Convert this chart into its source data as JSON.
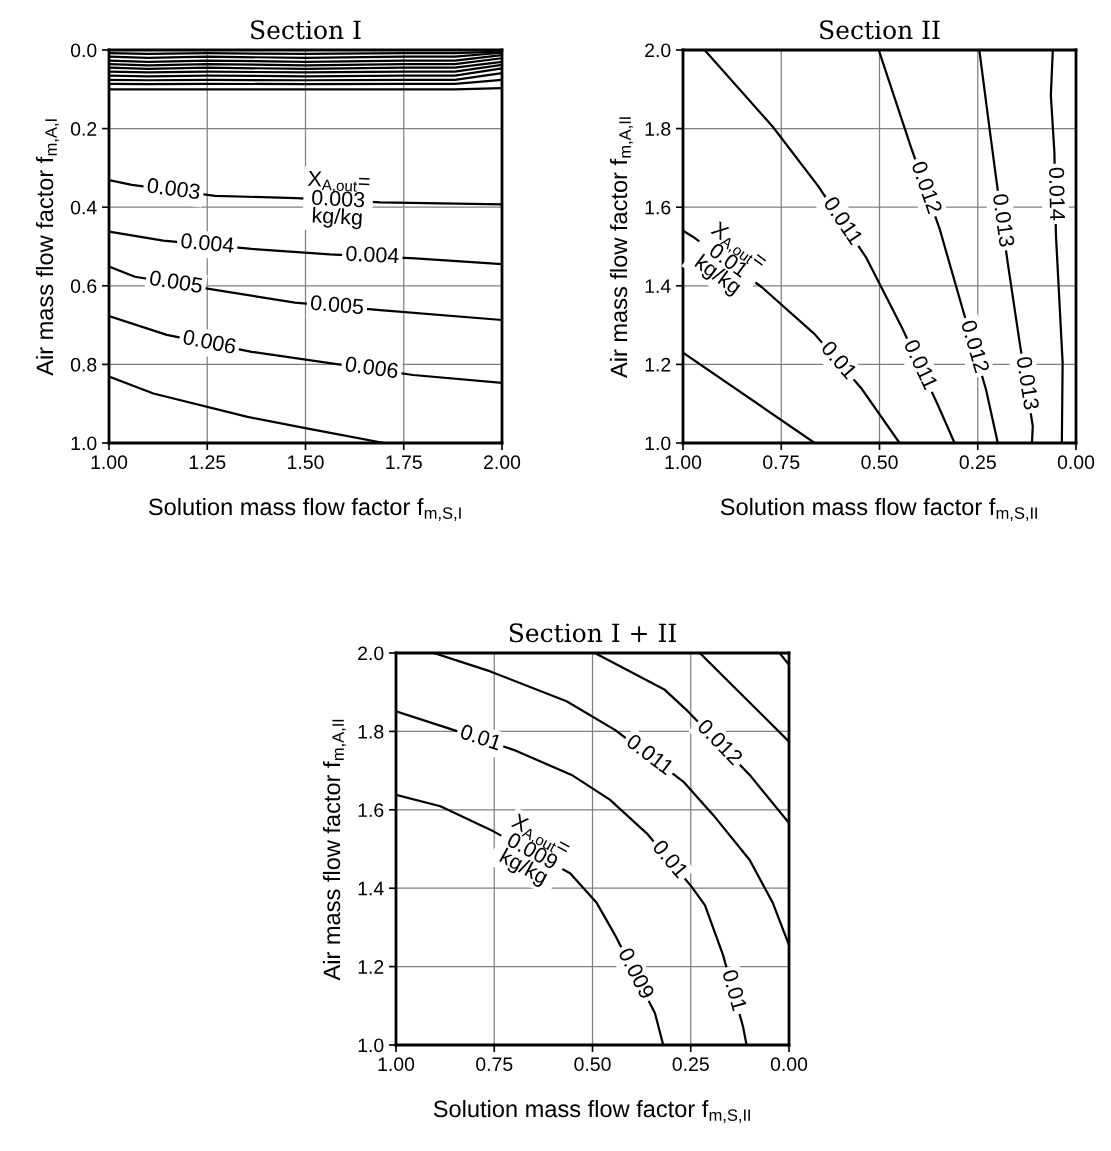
{
  "chart_data": [
    {
      "type": "line",
      "title": "Section I",
      "xlabel": "Solution mass flow factor f$_{m,S,I}$",
      "ylabel": "Air mass flow factor f$_{m,A,I}$",
      "xlim": [
        1.0,
        2.0
      ],
      "ylim": [
        1.0,
        0.0
      ],
      "xticks": [
        {
          "value": 1.0,
          "label": "1.00"
        },
        {
          "value": 1.25,
          "label": "1.25"
        },
        {
          "value": 1.5,
          "label": "1.50"
        },
        {
          "value": 1.75,
          "label": "1.75"
        },
        {
          "value": 2.0,
          "label": "2.00"
        }
      ],
      "yticks": [
        {
          "value": 0.0,
          "label": "0.0"
        },
        {
          "value": 0.2,
          "label": "0.2"
        },
        {
          "value": 0.4,
          "label": "0.4"
        },
        {
          "value": 0.6,
          "label": "0.6"
        },
        {
          "value": 0.8,
          "label": "0.8"
        },
        {
          "value": 1.0,
          "label": "1.0"
        }
      ],
      "grid": true,
      "series": [
        {
          "color": "#000000",
          "x": [
            1.0,
            1.1,
            1.25,
            1.5,
            1.75,
            1.88,
            2.0
          ],
          "values": [
            0.008,
            0.01,
            0.008,
            0.01,
            0.008,
            0.008,
            0.004
          ]
        },
        {
          "color": "#000000",
          "x": [
            1.0,
            1.1,
            1.25,
            1.5,
            1.75,
            1.88,
            2.0
          ],
          "values": [
            0.017,
            0.02,
            0.017,
            0.02,
            0.017,
            0.017,
            0.007
          ]
        },
        {
          "color": "#000000",
          "x": [
            1.0,
            1.1,
            1.25,
            1.5,
            1.75,
            1.88,
            2.0
          ],
          "values": [
            0.027,
            0.03,
            0.027,
            0.03,
            0.027,
            0.027,
            0.013
          ]
        },
        {
          "color": "#000000",
          "x": [
            1.0,
            1.1,
            1.25,
            1.5,
            1.75,
            1.88,
            2.0
          ],
          "values": [
            0.036,
            0.039,
            0.036,
            0.039,
            0.036,
            0.036,
            0.021
          ]
        },
        {
          "color": "#000000",
          "x": [
            1.0,
            1.1,
            1.25,
            1.5,
            1.75,
            1.88,
            2.0
          ],
          "values": [
            0.045,
            0.048,
            0.045,
            0.048,
            0.045,
            0.045,
            0.03
          ]
        },
        {
          "color": "#000000",
          "x": [
            1.0,
            1.1,
            1.25,
            1.5,
            1.75,
            1.88,
            2.0
          ],
          "values": [
            0.055,
            0.057,
            0.055,
            0.057,
            0.055,
            0.055,
            0.038
          ]
        },
        {
          "color": "#000000",
          "x": [
            1.0,
            1.1,
            1.25,
            1.5,
            1.75,
            1.88,
            2.0
          ],
          "values": [
            0.065,
            0.067,
            0.065,
            0.067,
            0.065,
            0.065,
            0.047
          ]
        },
        {
          "color": "#000000",
          "x": [
            1.0,
            1.1,
            1.25,
            1.5,
            1.75,
            1.88,
            2.0
          ],
          "values": [
            0.076,
            0.077,
            0.076,
            0.077,
            0.076,
            0.076,
            0.059
          ]
        },
        {
          "color": "#000000",
          "x": [
            1.0,
            1.1,
            1.25,
            1.5,
            1.75,
            1.88,
            2.0
          ],
          "values": [
            0.086,
            0.087,
            0.086,
            0.087,
            0.086,
            0.086,
            0.076
          ]
        },
        {
          "color": "#000000",
          "x": [
            1.0,
            1.25,
            1.5,
            1.75,
            1.88,
            2.0
          ],
          "values": [
            0.1,
            0.1,
            0.1,
            0.1,
            0.1,
            0.097
          ]
        },
        {
          "color": "#000000",
          "x": [
            1.0,
            1.058,
            1.27,
            1.476,
            1.69,
            2.0
          ],
          "values": [
            0.331,
            0.343,
            0.371,
            0.377,
            0.388,
            0.393
          ]
        },
        {
          "color": "#000000",
          "x": [
            1.0,
            1.138,
            1.363,
            1.562,
            1.779,
            2.0
          ],
          "values": [
            0.462,
            0.485,
            0.506,
            0.52,
            0.53,
            0.545
          ]
        },
        {
          "color": "#000000",
          "x": [
            1.0,
            1.066,
            1.274,
            1.473,
            1.69,
            2.0
          ],
          "values": [
            0.551,
            0.577,
            0.611,
            0.643,
            0.662,
            0.687
          ]
        },
        {
          "color": "#000000",
          "x": [
            1.0,
            1.147,
            1.363,
            1.562,
            1.774,
            2.0
          ],
          "values": [
            0.677,
            0.725,
            0.768,
            0.797,
            0.827,
            0.847
          ]
        },
        {
          "color": "#000000",
          "x": [
            1.0,
            1.113,
            1.35,
            1.503,
            1.7
          ],
          "values": [
            0.831,
            0.874,
            0.933,
            0.963,
            1.0
          ]
        }
      ],
      "annotations": [
        {
          "text": "0.003",
          "x": 1.164,
          "y": 0.357
        },
        {
          "text": "X$_{A,out}$=\n0.003\nkg/kg",
          "x": 1.583,
          "y": 0.3825
        },
        {
          "text": "0.004",
          "x": 1.25,
          "y": 0.4955
        },
        {
          "text": "0.004",
          "x": 1.67,
          "y": 0.525
        },
        {
          "text": "0.005",
          "x": 1.17,
          "y": 0.594
        },
        {
          "text": "0.005",
          "x": 1.58,
          "y": 0.6525
        },
        {
          "text": "0.006",
          "x": 1.255,
          "y": 0.7465
        },
        {
          "text": "0.006",
          "x": 1.668,
          "y": 0.812
        }
      ]
    },
    {
      "type": "line",
      "title": "Section II",
      "xlabel": "Solution mass flow factor f$_{m,S,II}$",
      "ylabel": "Air mass flow factor f$_{m,A,II}$",
      "xlim": [
        1.0,
        0.0
      ],
      "ylim": [
        1.0,
        2.0
      ],
      "xticks": [
        {
          "value": 1.0,
          "label": "1.00"
        },
        {
          "value": 0.75,
          "label": "0.75"
        },
        {
          "value": 0.5,
          "label": "0.50"
        },
        {
          "value": 0.25,
          "label": "0.25"
        },
        {
          "value": 0.0,
          "label": "0.00"
        }
      ],
      "yticks": [
        {
          "value": 1.0,
          "label": "1.0"
        },
        {
          "value": 1.2,
          "label": "1.2"
        },
        {
          "value": 1.4,
          "label": "1.4"
        },
        {
          "value": 1.6,
          "label": "1.6"
        },
        {
          "value": 1.8,
          "label": "1.8"
        },
        {
          "value": 2.0,
          "label": "2.0"
        }
      ],
      "grid": true,
      "series": [
        {
          "color": "#000000",
          "x": [
            1.0,
            0.665
          ],
          "values": [
            1.23,
            1.0
          ]
        },
        {
          "color": "#000000",
          "x": [
            1.0,
            0.975,
            0.8,
            0.665,
            0.547,
            0.449
          ],
          "values": [
            1.54,
            1.525,
            1.397,
            1.277,
            1.14,
            1.0
          ]
        },
        {
          "color": "#000000",
          "x": [
            0.945,
            0.771,
            0.657,
            0.534,
            0.445,
            0.352,
            0.309
          ],
          "values": [
            2.0,
            1.804,
            1.655,
            1.472,
            1.298,
            1.098,
            1.0
          ]
        },
        {
          "color": "#000000",
          "x": [
            0.502,
            0.42,
            0.347,
            0.292,
            0.229,
            0.199
          ],
          "values": [
            2.0,
            1.753,
            1.545,
            1.353,
            1.136,
            1.0
          ]
        },
        {
          "color": "#000000",
          "x": [
            0.246,
            0.22,
            0.203,
            0.174,
            0.144,
            0.11,
            0.112
          ],
          "values": [
            2.0,
            1.8,
            1.672,
            1.46,
            1.26,
            1.043,
            1.0
          ]
        },
        {
          "color": "#000000",
          "x": [
            0.059,
            0.064,
            0.055,
            0.051,
            0.034,
            0.036
          ],
          "values": [
            2.0,
            1.885,
            1.74,
            1.528,
            1.204,
            1.0
          ]
        }
      ],
      "annotations": [
        {
          "text": "X$_{A,out}$=\n0.01\nkg/kg",
          "x": 0.886,
          "y": 1.462
        },
        {
          "text": "0.01",
          "x": 0.606,
          "y": 1.2085
        },
        {
          "text": "0.011",
          "x": 0.5955,
          "y": 1.5635
        },
        {
          "text": "0.011",
          "x": 0.3985,
          "y": 1.198
        },
        {
          "text": "0.012",
          "x": 0.3835,
          "y": 1.649
        },
        {
          "text": "0.012",
          "x": 0.2605,
          "y": 1.2445
        },
        {
          "text": "0.013",
          "x": 0.1885,
          "y": 1.566
        },
        {
          "text": "0.013",
          "x": 0.127,
          "y": 1.1515
        },
        {
          "text": "0.014",
          "x": 0.053,
          "y": 1.634
        }
      ]
    },
    {
      "type": "line",
      "title": "Section I + II",
      "xlabel": "Solution mass flow factor f$_{m,S,II}$",
      "ylabel": "Air mass flow factor f$_{m,A,II}$",
      "xlim": [
        1.0,
        0.0
      ],
      "ylim": [
        1.0,
        2.0
      ],
      "xticks": [
        {
          "value": 1.0,
          "label": "1.00"
        },
        {
          "value": 0.75,
          "label": "0.75"
        },
        {
          "value": 0.5,
          "label": "0.50"
        },
        {
          "value": 0.25,
          "label": "0.25"
        },
        {
          "value": 0.0,
          "label": "0.00"
        }
      ],
      "yticks": [
        {
          "value": 1.0,
          "label": "1.0"
        },
        {
          "value": 1.2,
          "label": "1.2"
        },
        {
          "value": 1.4,
          "label": "1.4"
        },
        {
          "value": 1.6,
          "label": "1.6"
        },
        {
          "value": 1.8,
          "label": "1.8"
        },
        {
          "value": 2.0,
          "label": "2.0"
        }
      ],
      "grid": true,
      "series": [
        {
          "color": "#000000",
          "x": [
            1.0,
            0.887,
            0.752,
            0.557,
            0.489,
            0.443,
            0.341,
            0.32
          ],
          "values": [
            1.638,
            1.609,
            1.545,
            1.438,
            1.362,
            1.281,
            1.081,
            1.0
          ]
        },
        {
          "color": "#000000",
          "x": [
            1.0,
            0.87,
            0.701,
            0.553,
            0.456,
            0.362,
            0.248,
            0.214,
            0.168,
            0.117,
            0.108
          ],
          "values": [
            1.851,
            1.809,
            1.753,
            1.689,
            1.626,
            1.54,
            1.404,
            1.357,
            1.23,
            1.047,
            1.0
          ]
        },
        {
          "color": "#000000",
          "x": [
            0.904,
            0.76,
            0.566,
            0.443,
            0.269,
            0.193,
            0.1,
            0.041,
            0.0
          ],
          "values": [
            2.0,
            1.953,
            1.877,
            1.804,
            1.672,
            1.587,
            1.472,
            1.362,
            1.255
          ]
        },
        {
          "color": "#000000",
          "x": [
            0.494,
            0.316,
            0.257,
            0.1,
            0.0
          ],
          "values": [
            2.0,
            1.906,
            1.851,
            1.689,
            1.566
          ]
        },
        {
          "color": "#000000",
          "x": [
            0.227,
            0.0
          ],
          "values": [
            2.0,
            1.774
          ]
        },
        {
          "color": "#000000",
          "x": [
            0.024,
            0.0
          ],
          "values": [
            2.0,
            1.97
          ]
        }
      ],
      "annotations": [
        {
          "text": "X$_{A,out}$=\n0.009\nkg/kg",
          "x": 0.6545,
          "y": 1.4915
        },
        {
          "text": "0.009",
          "x": 0.392,
          "y": 1.181
        },
        {
          "text": "0.01",
          "x": 0.7855,
          "y": 1.781
        },
        {
          "text": "0.01",
          "x": 0.305,
          "y": 1.472
        },
        {
          "text": "0.01",
          "x": 0.1425,
          "y": 1.1385
        },
        {
          "text": "0.011",
          "x": 0.356,
          "y": 1.738
        },
        {
          "text": "0.012",
          "x": 0.1785,
          "y": 1.77
        }
      ]
    }
  ]
}
